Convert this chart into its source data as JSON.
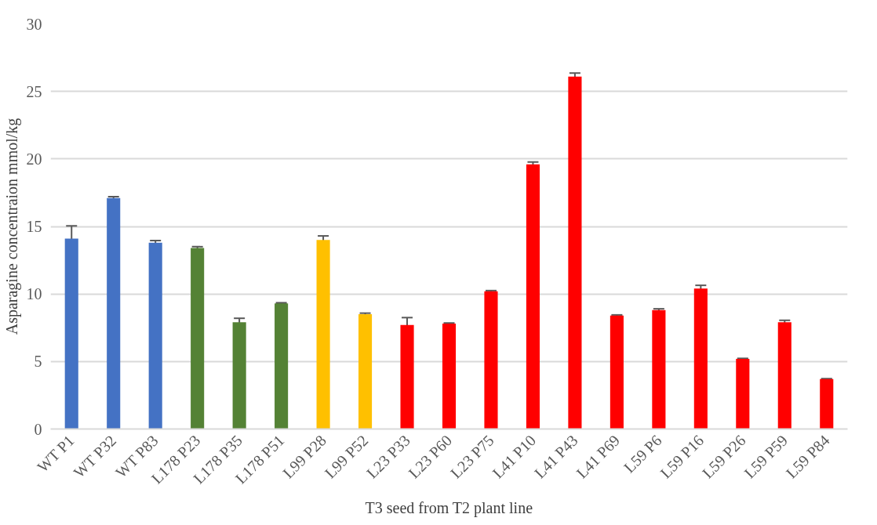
{
  "chart_data": {
    "type": "bar",
    "xlabel": "T3 seed from T2 plant line",
    "ylabel": "Asparagine concentraion mmol/kg",
    "categories": [
      "WT P1",
      "WT P32",
      "WT P83",
      "L178 P23",
      "L178 P35",
      "L178 P51",
      "L99 P28",
      "L99 P52",
      "L23 P33",
      "L23 P60",
      "L23 P75",
      "L41 P10",
      "L41 P43",
      "L41 P69",
      "L59 P6",
      "L59 P16",
      "L59 P26",
      "L59 P59",
      "L59 P84"
    ],
    "values": [
      14.1,
      17.1,
      13.8,
      13.4,
      7.9,
      9.3,
      14.0,
      8.5,
      7.7,
      7.8,
      10.2,
      19.6,
      26.1,
      8.4,
      8.8,
      10.4,
      5.2,
      7.9,
      3.7
    ],
    "errors": [
      0.95,
      0.1,
      0.15,
      0.1,
      0.3,
      0.05,
      0.3,
      0.08,
      0.55,
      0.05,
      0.05,
      0.17,
      0.26,
      0.05,
      0.1,
      0.24,
      0.03,
      0.15,
      0.03
    ],
    "colors": [
      "#4472c4",
      "#4472c4",
      "#4472c4",
      "#548235",
      "#548235",
      "#548235",
      "#ffc000",
      "#ffc000",
      "#ff0000",
      "#ff0000",
      "#ff0000",
      "#ff0000",
      "#ff0000",
      "#ff0000",
      "#ff0000",
      "#ff0000",
      "#ff0000",
      "#ff0000",
      "#ff0000"
    ],
    "ylim": [
      0,
      30
    ],
    "yticks": [
      0,
      5,
      10,
      15,
      20,
      25,
      30
    ],
    "grid": "y"
  }
}
